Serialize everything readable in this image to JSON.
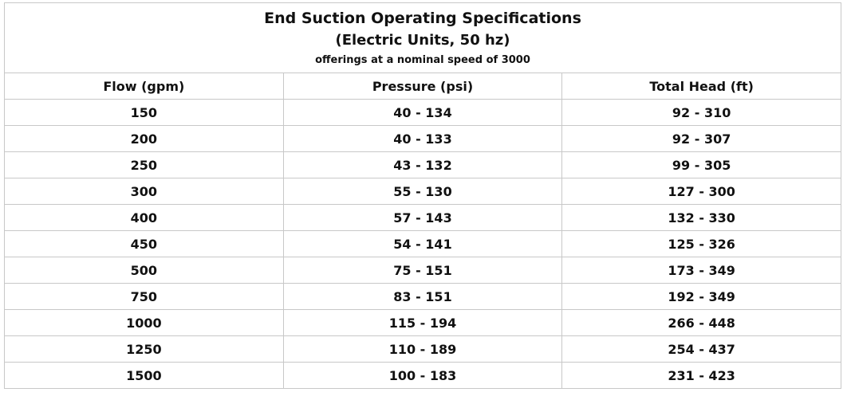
{
  "title": {
    "line1": "End Suction Operating Specifications",
    "line2": "(Electric Units, 50 hz)",
    "line3": "offerings at a nominal speed of 3000"
  },
  "table": {
    "headers": [
      "Flow (gpm)",
      "Pressure (psi)",
      "Total Head (ft)"
    ],
    "rows": [
      [
        "150",
        "40 - 134",
        "92 - 310"
      ],
      [
        "200",
        "40 - 133",
        "92 - 307"
      ],
      [
        "250",
        "43 - 132",
        "99 - 305"
      ],
      [
        "300",
        "55 - 130",
        "127 - 300"
      ],
      [
        "400",
        "57 - 143",
        "132 - 330"
      ],
      [
        "450",
        "54 - 141",
        "125 - 326"
      ],
      [
        "500",
        "75 - 151",
        "173 - 349"
      ],
      [
        "750",
        "83 - 151",
        "192 - 349"
      ],
      [
        "1000",
        "115 - 194",
        "266 - 448"
      ],
      [
        "1250",
        "110 - 189",
        "254 - 437"
      ],
      [
        "1500",
        "100 - 183",
        "231 - 423"
      ]
    ]
  }
}
